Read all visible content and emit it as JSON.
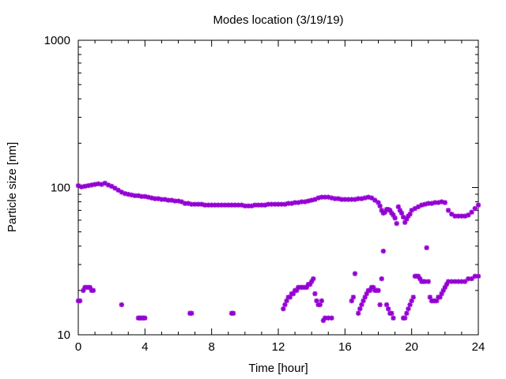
{
  "chart_data": {
    "type": "scatter",
    "title": "Modes location (3/19/19)",
    "xlabel": "Time [hour]",
    "ylabel": "Particle size [nm]",
    "xlim": [
      0,
      24
    ],
    "ylim": [
      10,
      1000
    ],
    "yscale": "log",
    "grid": false,
    "legend": "none",
    "xticks": [
      0,
      4,
      8,
      12,
      16,
      20,
      24
    ],
    "xtick_labels": [
      "0",
      "4",
      "8",
      "12",
      "16",
      "20",
      "24"
    ],
    "yticks": [
      10,
      100,
      1000
    ],
    "ytick_labels": [
      "10",
      "100",
      "1000"
    ],
    "marker_color": "#9400d3",
    "marker": "star",
    "series": [
      {
        "x": [
          0,
          0.2,
          0.4,
          0.6,
          0.8,
          1.0,
          1.2,
          1.4,
          1.6,
          1.8,
          2.0,
          2.2,
          2.4,
          2.6,
          2.8,
          3.0,
          3.2,
          3.4,
          3.6,
          3.8,
          4.0,
          4.2,
          4.4,
          4.6,
          4.8,
          5.0,
          5.2,
          5.4,
          5.6,
          5.8,
          6.0,
          6.2,
          6.4,
          6.6,
          6.8,
          7.0,
          7.2,
          7.4,
          7.6,
          7.8,
          8.0,
          8.2,
          8.4,
          8.6,
          8.8,
          9.0,
          9.2,
          9.4,
          9.6,
          9.8,
          10.0,
          10.2,
          10.4,
          10.6,
          10.8,
          11.0,
          11.2,
          11.4,
          11.6,
          11.8,
          12.0,
          12.2,
          12.4,
          12.6,
          12.8,
          13.0,
          13.2,
          13.4,
          13.6,
          13.8,
          14.0,
          14.2,
          14.4,
          14.6,
          14.8,
          15.0,
          15.2,
          15.4,
          15.6,
          15.8,
          16.0,
          16.2,
          16.4,
          16.6,
          16.8,
          17.0,
          17.2,
          17.4,
          17.6,
          17.8,
          18.0,
          18.1,
          18.2,
          18.3,
          18.4,
          18.5,
          18.6,
          18.7,
          18.8,
          18.9,
          19.0,
          19.1,
          19.2,
          19.3,
          19.4,
          19.5,
          19.6,
          19.7,
          19.8,
          19.9,
          20.0,
          20.2,
          20.4,
          20.6,
          20.8,
          21.0,
          21.2,
          21.4,
          21.6,
          21.8,
          22.0,
          22.2,
          22.4,
          22.6,
          22.8,
          23.0,
          23.2,
          23.4,
          23.6,
          23.8,
          24.0
        ],
        "y": [
          103,
          101,
          102,
          103,
          104,
          105,
          106,
          105,
          107,
          104,
          102,
          99,
          96,
          93,
          91,
          90,
          89,
          88,
          88,
          87,
          87,
          86,
          85,
          84,
          84,
          83,
          83,
          82,
          82,
          81,
          81,
          80,
          78,
          78,
          77,
          77,
          77,
          77,
          76,
          76,
          76,
          76,
          76,
          76,
          76,
          76,
          76,
          76,
          76,
          76,
          75,
          75,
          75,
          76,
          76,
          76,
          76,
          77,
          77,
          77,
          77,
          77,
          77,
          78,
          78,
          79,
          79,
          80,
          80,
          81,
          82,
          83,
          85,
          86,
          86,
          86,
          85,
          84,
          84,
          83,
          83,
          83,
          83,
          83,
          84,
          84,
          85,
          86,
          85,
          82,
          79,
          75,
          70,
          67,
          68,
          71,
          71,
          70,
          67,
          65,
          62,
          57,
          74,
          70,
          67,
          63,
          58,
          61,
          64,
          66,
          70,
          72,
          74,
          76,
          77,
          78,
          78,
          79,
          79,
          80,
          79,
          70,
          66,
          64,
          64,
          64,
          64,
          65,
          68,
          72,
          76
        ]
      },
      {
        "x": [
          0,
          0.1,
          0.3,
          0.4,
          0.5,
          0.6,
          0.7,
          0.8,
          0.9,
          2.6,
          3.6,
          3.7,
          3.8,
          3.9,
          4.0,
          6.7,
          6.8,
          9.2,
          9.3,
          12.3,
          12.4,
          12.5,
          12.6,
          12.7,
          12.8,
          12.9,
          13.0,
          13.1,
          13.2,
          13.3,
          13.4,
          13.5,
          13.6,
          13.7,
          13.8,
          13.9,
          14.0,
          14.1,
          14.2,
          14.3,
          14.4,
          14.5,
          14.6,
          14.7,
          14.8,
          15.0,
          15.2,
          16.4,
          16.5,
          16.6,
          16.8,
          16.9,
          17.0,
          17.1,
          17.2,
          17.3,
          17.4,
          17.5,
          17.6,
          17.7,
          17.8,
          17.9,
          18.0,
          18.1,
          18.2,
          18.3,
          18.5,
          18.6,
          18.7,
          18.8,
          18.9,
          19.5,
          19.6,
          19.7,
          19.8,
          19.9,
          20.0,
          20.1,
          20.2,
          20.3,
          20.4,
          20.5,
          20.6,
          20.7,
          20.8,
          20.9,
          21.0,
          21.1,
          21.2,
          21.3,
          21.4,
          21.5,
          21.6,
          21.7,
          21.8,
          21.9,
          22.0,
          22.1,
          22.2,
          22.4,
          22.6,
          22.8,
          23.0,
          23.2,
          23.4,
          23.6,
          23.8,
          24.0
        ],
        "y": [
          17,
          17,
          20,
          21,
          21,
          21,
          21,
          20,
          20,
          16,
          13,
          13,
          13,
          13,
          13,
          14,
          14,
          14,
          14,
          15,
          16,
          17,
          18,
          18,
          19,
          19,
          20,
          20,
          21,
          21,
          21,
          21,
          21,
          21,
          22,
          22,
          23,
          24,
          19,
          17,
          16,
          16,
          17,
          12.5,
          13,
          13,
          13,
          17,
          18,
          26,
          14,
          15,
          16,
          17,
          18,
          19,
          20,
          20,
          21,
          21,
          20,
          20,
          20,
          16,
          24,
          37,
          16,
          15,
          14,
          14,
          13,
          13,
          13,
          14,
          15,
          16,
          17,
          18,
          25,
          25,
          25,
          24,
          23,
          23,
          23,
          39,
          23,
          18,
          17,
          17,
          17,
          17,
          18,
          18,
          19,
          20,
          21,
          22,
          23,
          23,
          23,
          23,
          23,
          23,
          24,
          24,
          25,
          25
        ]
      }
    ]
  }
}
